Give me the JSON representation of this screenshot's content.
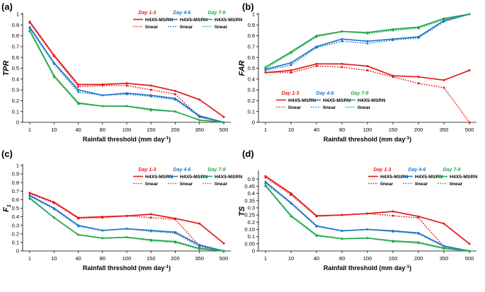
{
  "colors": {
    "day13": "#e31a1c",
    "day46": "#1f78c8",
    "day79": "#22a84a",
    "axis": "#000000"
  },
  "chart_data": [
    {
      "type": "line",
      "panel_label": "(a)",
      "ylabel": "TPR",
      "xlabel": "Rainfall threshold (mm day",
      "xlabel_unit_sup": "-1",
      "xlabel_end": ")",
      "categories": [
        "1",
        "10",
        "40",
        "80",
        "100",
        "150",
        "200",
        "350",
        "500"
      ],
      "ylim": [
        0,
        1
      ],
      "yticks": [
        "0",
        "0.1",
        "0.2",
        "0.3",
        "0.4",
        "0.5",
        "0.6",
        "0.7",
        "0.8",
        "0.9",
        "1"
      ],
      "legend_position": "top-right",
      "legend_groups": [
        "Day 1-3",
        "Day 4-6",
        "Day 7-9"
      ],
      "legend_entries": [
        "H4X5-MSRN",
        "linear"
      ],
      "series": [
        {
          "name": "H4X5-MSRN",
          "group": "Day 1-3",
          "style": "solid",
          "values": [
            0.93,
            0.62,
            0.35,
            0.35,
            0.36,
            0.34,
            0.29,
            0.21,
            0.05
          ]
        },
        {
          "name": "linear",
          "group": "Day 1-3",
          "style": "dotted",
          "values": [
            0.92,
            0.61,
            0.33,
            0.34,
            0.34,
            0.3,
            0.26,
            0.05,
            0.0
          ]
        },
        {
          "name": "H4X5-MSRN",
          "group": "Day 4-6",
          "style": "solid",
          "values": [
            0.88,
            0.55,
            0.3,
            0.25,
            0.27,
            0.25,
            0.22,
            0.06,
            0.0
          ]
        },
        {
          "name": "linear",
          "group": "Day 4-6",
          "style": "dotted",
          "values": [
            0.87,
            0.54,
            0.28,
            0.25,
            0.26,
            0.24,
            0.21,
            0.05,
            0.0
          ]
        },
        {
          "name": "H4X5-MSRN",
          "group": "Day 7-9",
          "style": "solid",
          "values": [
            0.85,
            0.43,
            0.18,
            0.15,
            0.15,
            0.12,
            0.1,
            0.02,
            0.0
          ]
        },
        {
          "name": "linear",
          "group": "Day 7-9",
          "style": "dotted",
          "values": [
            0.84,
            0.42,
            0.17,
            0.15,
            0.15,
            0.11,
            0.1,
            0.02,
            0.0
          ]
        }
      ]
    },
    {
      "type": "line",
      "panel_label": "(b)",
      "ylabel": "FAR",
      "xlabel": "Rainfall threshold (mm day",
      "xlabel_unit_sup": "-1",
      "xlabel_end": ")",
      "categories": [
        "1",
        "10",
        "40",
        "80",
        "100",
        "150",
        "200",
        "350",
        "500"
      ],
      "ylim": [
        0,
        1
      ],
      "yticks": [
        "0",
        "0.1",
        "0.2",
        "0.3",
        "0.4",
        "0.5",
        "0.6",
        "0.7",
        "0.8",
        "0.9",
        "1"
      ],
      "legend_position": "bottom-right",
      "legend_groups": [
        "Day 1-3",
        "Day 4-6",
        "Day 7-9"
      ],
      "legend_entries": [
        "H4X5-MSRN",
        "linear"
      ],
      "series": [
        {
          "name": "H4X5-MSRN",
          "group": "Day 1-3",
          "style": "solid",
          "values": [
            0.46,
            0.48,
            0.54,
            0.54,
            0.52,
            0.43,
            0.42,
            0.39,
            0.48
          ]
        },
        {
          "name": "linear",
          "group": "Day 1-3",
          "style": "dotted",
          "values": [
            0.46,
            0.46,
            0.52,
            0.51,
            0.48,
            0.42,
            0.36,
            0.32,
            0.0
          ]
        },
        {
          "name": "H4X5-MSRN",
          "group": "Day 4-6",
          "style": "solid",
          "values": [
            0.49,
            0.55,
            0.7,
            0.77,
            0.75,
            0.77,
            0.79,
            0.94,
            1.0
          ]
        },
        {
          "name": "linear",
          "group": "Day 4-6",
          "style": "dotted",
          "values": [
            0.48,
            0.53,
            0.69,
            0.75,
            0.73,
            0.76,
            0.78,
            0.93,
            1.0
          ]
        },
        {
          "name": "H4X5-MSRN",
          "group": "Day 7-9",
          "style": "solid",
          "values": [
            0.51,
            0.65,
            0.8,
            0.84,
            0.83,
            0.86,
            0.88,
            0.96,
            1.0
          ]
        },
        {
          "name": "linear",
          "group": "Day 7-9",
          "style": "dotted",
          "values": [
            0.5,
            0.64,
            0.79,
            0.84,
            0.82,
            0.85,
            0.87,
            0.95,
            1.0
          ]
        }
      ]
    },
    {
      "type": "line",
      "panel_label": "(c)",
      "ylabel": "F",
      "ylabel_sub": "1",
      "xlabel": "Rainfall threshold (mm day",
      "xlabel_unit_sup": "-1",
      "xlabel_end": ")",
      "categories": [
        "1",
        "10",
        "40",
        "80",
        "100",
        "150",
        "200",
        "350",
        "500"
      ],
      "ylim": [
        0,
        1
      ],
      "yticks": [
        "0",
        "0.1",
        "0.2",
        "0.3",
        "0.4",
        "0.5",
        "0.6",
        "0.7",
        "0.8",
        "0.9",
        "1"
      ],
      "legend_position": "top-right",
      "legend_groups": [
        "Day 1-3",
        "Day 4-6",
        "Day 7-9"
      ],
      "legend_entries": [
        "H4X5-MSRN",
        "linear"
      ],
      "series": [
        {
          "name": "H4X5-MSRN",
          "group": "Day 1-3",
          "style": "solid",
          "values": [
            0.68,
            0.57,
            0.39,
            0.4,
            0.41,
            0.43,
            0.38,
            0.32,
            0.09
          ]
        },
        {
          "name": "linear",
          "group": "Day 1-3",
          "style": "dotted",
          "values": [
            0.67,
            0.56,
            0.38,
            0.39,
            0.41,
            0.39,
            0.37,
            0.06,
            0.0
          ]
        },
        {
          "name": "H4X5-MSRN",
          "group": "Day 4-6",
          "style": "solid",
          "values": [
            0.65,
            0.5,
            0.3,
            0.24,
            0.26,
            0.24,
            0.22,
            0.07,
            0.0
          ]
        },
        {
          "name": "linear",
          "group": "Day 4-6",
          "style": "dotted",
          "values": [
            0.64,
            0.49,
            0.29,
            0.24,
            0.26,
            0.23,
            0.21,
            0.05,
            0.0
          ]
        },
        {
          "name": "H4X5-MSRN",
          "group": "Day 7-9",
          "style": "solid",
          "values": [
            0.62,
            0.39,
            0.19,
            0.15,
            0.16,
            0.13,
            0.11,
            0.03,
            0.0
          ]
        },
        {
          "name": "linear",
          "group": "Day 7-9",
          "style": "dotted",
          "values": [
            0.61,
            0.39,
            0.19,
            0.15,
            0.16,
            0.12,
            0.1,
            0.02,
            0.0
          ]
        }
      ]
    },
    {
      "type": "line",
      "panel_label": "(d)",
      "ylabel": "TS",
      "xlabel": "Rainfall threshold (mm day",
      "xlabel_unit_sup": "-1",
      "xlabel_end": ")",
      "categories": [
        "1",
        "10",
        "40",
        "80",
        "100",
        "150",
        "200",
        "350",
        "500"
      ],
      "ylim": [
        0,
        0.55
      ],
      "yticks": [
        "0",
        "0.05",
        "0.1",
        "0.15",
        "0.2",
        "0.25",
        "0.3",
        "0.35",
        "0.4",
        "0.45",
        "0.5"
      ],
      "legend_position": "top-right",
      "legend_groups": [
        "Day 1-3",
        "Day 4-6",
        "Day 7-9"
      ],
      "legend_entries": [
        "H4X5-MSRN",
        "linear"
      ],
      "series": [
        {
          "name": "H4X5-MSRN",
          "group": "Day 1-3",
          "style": "solid",
          "values": [
            0.52,
            0.4,
            0.245,
            0.25,
            0.26,
            0.275,
            0.24,
            0.19,
            0.05
          ]
        },
        {
          "name": "linear",
          "group": "Day 1-3",
          "style": "dotted",
          "values": [
            0.51,
            0.39,
            0.24,
            0.25,
            0.26,
            0.245,
            0.23,
            0.03,
            0.0
          ]
        },
        {
          "name": "H4X5-MSRN",
          "group": "Day 4-6",
          "style": "solid",
          "values": [
            0.48,
            0.335,
            0.175,
            0.14,
            0.15,
            0.14,
            0.125,
            0.035,
            0.0
          ]
        },
        {
          "name": "linear",
          "group": "Day 4-6",
          "style": "dotted",
          "values": [
            0.47,
            0.33,
            0.17,
            0.14,
            0.15,
            0.135,
            0.12,
            0.03,
            0.0
          ]
        },
        {
          "name": "H4X5-MSRN",
          "group": "Day 7-9",
          "style": "solid",
          "values": [
            0.455,
            0.245,
            0.11,
            0.085,
            0.09,
            0.07,
            0.06,
            0.02,
            0.0
          ]
        },
        {
          "name": "linear",
          "group": "Day 7-9",
          "style": "dotted",
          "values": [
            0.45,
            0.24,
            0.105,
            0.085,
            0.09,
            0.065,
            0.055,
            0.015,
            0.0
          ]
        }
      ]
    }
  ]
}
